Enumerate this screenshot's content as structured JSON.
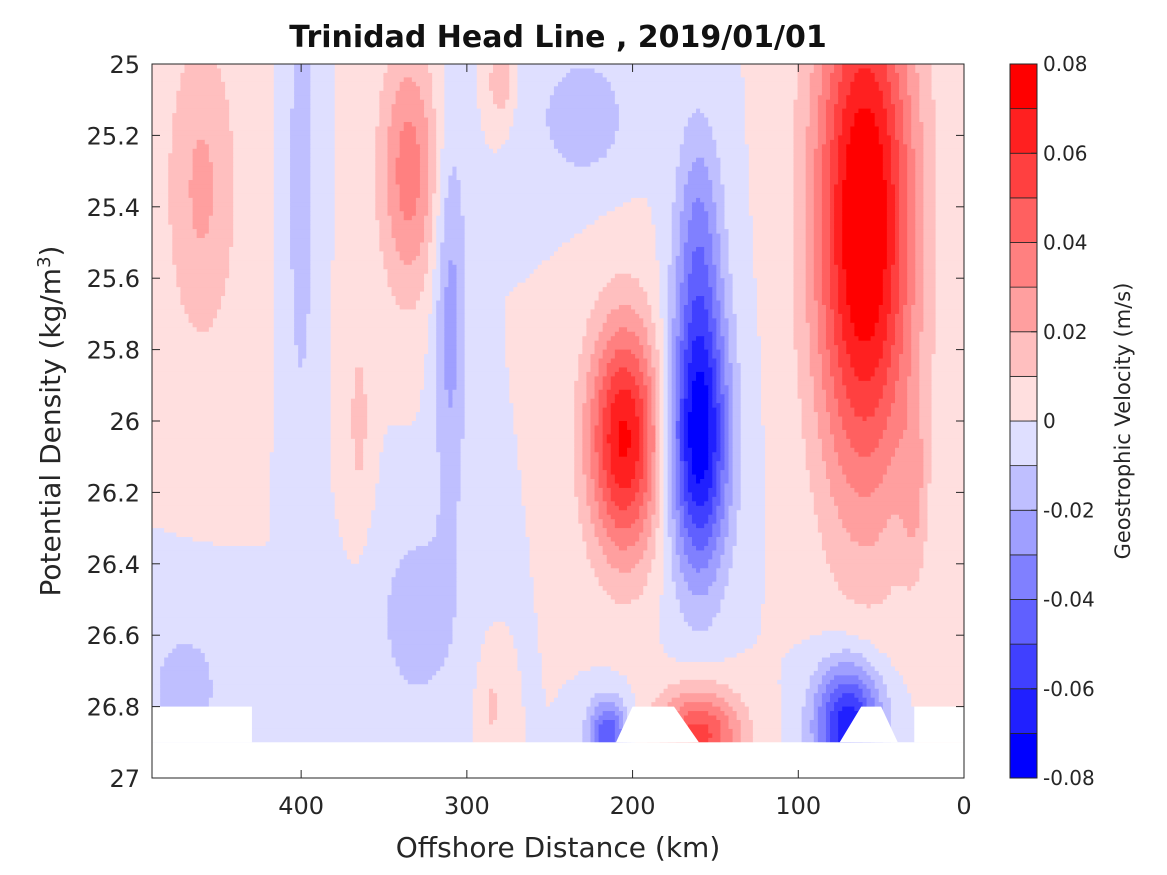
{
  "chart_data": {
    "type": "contourf",
    "title": "Trinidad Head Line , 2019/01/01",
    "xlabel": "Offshore Distance (km)",
    "ylabel_main": "Potential Density (kg/m",
    "ylabel_sup": "3",
    "ylabel_end": ")",
    "xlim": [
      490,
      0
    ],
    "ylim": [
      25,
      27
    ],
    "y_reversed": true,
    "x_ticks": [
      400,
      300,
      200,
      100,
      0
    ],
    "y_ticks": [
      "25",
      "25.2",
      "25.4",
      "25.6",
      "25.8",
      "26",
      "26.2",
      "26.4",
      "26.6",
      "26.8",
      "27"
    ],
    "y_tick_values": [
      25,
      25.2,
      25.4,
      25.6,
      25.8,
      26,
      26.2,
      26.4,
      26.6,
      26.8,
      27
    ],
    "colorbar": {
      "label": "Geostrophic Velocity (m/s)",
      "ticks": [
        "0.08",
        "0.06",
        "0.04",
        "0.02",
        "0",
        "-0.02",
        "-0.04",
        "-0.06",
        "-0.08"
      ],
      "tick_values": [
        0.08,
        0.06,
        0.04,
        0.02,
        0,
        -0.02,
        -0.04,
        -0.06,
        -0.08
      ],
      "levels": [
        -0.08,
        -0.07,
        -0.06,
        -0.05,
        -0.04,
        -0.03,
        -0.02,
        -0.01,
        0,
        0.01,
        0.02,
        0.03,
        0.04,
        0.05,
        0.06,
        0.07,
        0.08
      ],
      "colormap": "blue-white-red",
      "color_neg": "#0000ff",
      "color_zero": "#ffffff",
      "color_pos": "#ff0000"
    },
    "features": [
      {
        "x": 60,
        "y": 25.45,
        "sx": 30,
        "sy": 0.75,
        "value": 0.085
      },
      {
        "x": 205,
        "y": 26.05,
        "sx": 22,
        "sy": 0.33,
        "value": 0.072
      },
      {
        "x": 160,
        "y": 26.05,
        "sx": 18,
        "sy": 0.38,
        "value": -0.078
      },
      {
        "x": 160,
        "y": 25.5,
        "sx": 14,
        "sy": 0.35,
        "value": -0.03
      },
      {
        "x": 160,
        "y": 26.88,
        "sx": 25,
        "sy": 0.13,
        "value": 0.055
      },
      {
        "x": 215,
        "y": 26.88,
        "sx": 12,
        "sy": 0.1,
        "value": -0.05
      },
      {
        "x": 70,
        "y": 26.85,
        "sx": 20,
        "sy": 0.17,
        "value": -0.07
      },
      {
        "x": 335,
        "y": 25.3,
        "sx": 18,
        "sy": 0.35,
        "value": 0.035
      },
      {
        "x": 460,
        "y": 25.35,
        "sx": 22,
        "sy": 0.45,
        "value": 0.022
      },
      {
        "x": 400,
        "y": 25.35,
        "sx": 8,
        "sy": 0.65,
        "value": -0.018
      },
      {
        "x": 310,
        "y": 25.7,
        "sx": 10,
        "sy": 0.55,
        "value": -0.025
      },
      {
        "x": 230,
        "y": 25.15,
        "sx": 28,
        "sy": 0.18,
        "value": -0.018
      },
      {
        "x": 330,
        "y": 26.55,
        "sx": 28,
        "sy": 0.3,
        "value": -0.015
      },
      {
        "x": 470,
        "y": 26.75,
        "sx": 25,
        "sy": 0.2,
        "value": -0.015
      },
      {
        "x": 280,
        "y": 25.05,
        "sx": 7,
        "sy": 0.1,
        "value": 0.02
      },
      {
        "x": 30,
        "y": 26.2,
        "sx": 8,
        "sy": 0.25,
        "value": 0.015
      },
      {
        "x": 365,
        "y": 26,
        "sx": 8,
        "sy": 0.3,
        "value": 0.013
      },
      {
        "x": 285,
        "y": 26.8,
        "sx": 8,
        "sy": 0.15,
        "value": 0.012
      }
    ]
  }
}
